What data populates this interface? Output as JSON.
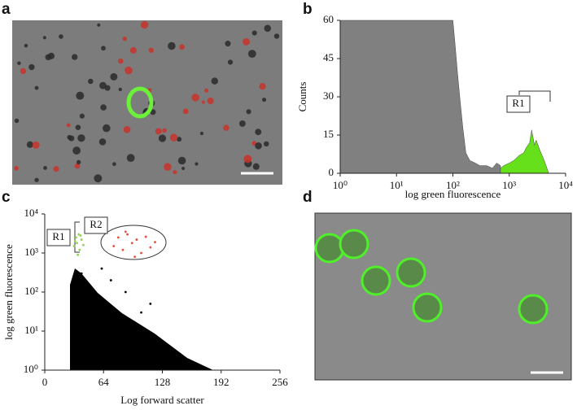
{
  "panel_labels": [
    "a",
    "b",
    "c",
    "d"
  ],
  "chart_data": [
    {
      "type": "area",
      "xlabel": "log green fluorescence",
      "ylabel": "Counts",
      "xscale": "log",
      "xlim": [
        1,
        10000
      ],
      "ylim": [
        0,
        60
      ],
      "xticks": [
        {
          "value": 1,
          "label": "10⁰"
        },
        {
          "value": 10,
          "label": "10¹"
        },
        {
          "value": 100,
          "label": "10²"
        },
        {
          "value": 1000,
          "label": "10³"
        },
        {
          "value": 10000,
          "label": "10⁴"
        }
      ],
      "yticks": [
        0,
        15,
        30,
        45,
        60
      ],
      "series": [
        {
          "color": "#808080",
          "x": [
            1,
            10,
            100,
            110,
            120,
            135,
            150,
            170,
            200,
            250,
            300,
            400,
            500,
            600,
            700
          ],
          "values": [
            60,
            60,
            60,
            50,
            40,
            28,
            18,
            8,
            5,
            4,
            3,
            3,
            2,
            4,
            3
          ]
        },
        {
          "color": "#66e01a",
          "x": [
            700,
            800,
            1000,
            1200,
            1500,
            1800,
            2000,
            2300,
            2500,
            2800,
            3000,
            3500,
            4000,
            4500,
            5000
          ],
          "values": [
            2,
            3,
            4,
            5,
            7,
            8,
            10,
            12,
            17,
            11,
            13,
            9,
            6,
            3,
            0
          ]
        }
      ],
      "annotations": [
        "R1"
      ]
    },
    {
      "type": "scatter",
      "xlabel": "Log forward scatter",
      "ylabel": "log green fluorescence",
      "yscale": "log",
      "xlim": [
        0,
        256
      ],
      "ylim": [
        1,
        10000
      ],
      "xticks": [
        0,
        64,
        128,
        192,
        256
      ],
      "yticks": [
        {
          "value": 1,
          "label": "10⁰"
        },
        {
          "value": 10,
          "label": "10¹"
        },
        {
          "value": 100,
          "label": "10²"
        },
        {
          "value": 1000,
          "label": "10³"
        },
        {
          "value": 10000,
          "label": "10⁴"
        }
      ],
      "series": [
        {
          "color": "#000000",
          "x": [
            40,
            45,
            48,
            52,
            55,
            60,
            65,
            70,
            75,
            80,
            85,
            90,
            95,
            100,
            110,
            120,
            130,
            140,
            150,
            160,
            105,
            115,
            88,
            72,
            62
          ],
          "values": [
            300,
            150,
            80,
            60,
            40,
            25,
            30,
            20,
            15,
            12,
            10,
            8,
            6,
            5,
            4,
            3,
            2.5,
            2,
            1.8,
            1.5,
            30,
            50,
            100,
            200,
            400
          ]
        },
        {
          "color": "#8fd14f",
          "x": [
            32,
            34,
            35,
            37,
            38,
            40,
            42,
            36,
            33,
            39
          ],
          "values": [
            1500,
            2500,
            1800,
            3000,
            1200,
            2200,
            1600,
            900,
            2000,
            2800
          ]
        },
        {
          "color": "#e0503a",
          "x": [
            75,
            80,
            85,
            90,
            95,
            100,
            105,
            110,
            115,
            120,
            88,
            98
          ],
          "values": [
            1500,
            2500,
            1200,
            3000,
            1800,
            2200,
            1000,
            2600,
            1400,
            1900,
            3500,
            800
          ]
        }
      ],
      "annotations": [
        "R1",
        "R2"
      ]
    }
  ]
}
